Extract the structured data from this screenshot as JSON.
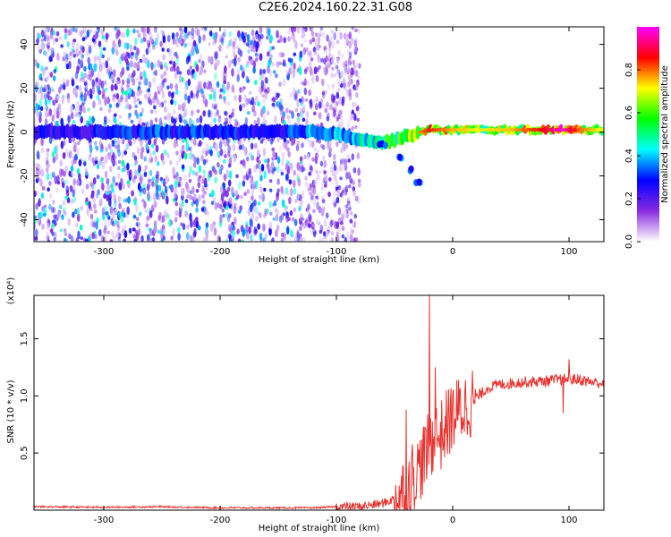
{
  "title": "C2E6.2024.160.22.31.G08",
  "chart_data": [
    {
      "type": "heatmap",
      "xlabel": "Height of straight line (km)",
      "ylabel": "Frequency (Hz)",
      "xlim": [
        -360,
        130
      ],
      "ylim": [
        -50,
        48
      ],
      "x_ticks": [
        -300,
        -200,
        -100,
        0,
        100
      ],
      "y_ticks": [
        -40,
        -20,
        0,
        20,
        40
      ],
      "colorbar": {
        "label": "Normalized spectral amplitude",
        "range": [
          0,
          1
        ],
        "ticks": [
          "0.0",
          "0.2",
          "0.4",
          "0.6",
          "0.8"
        ],
        "colors": [
          "#ffffff",
          "#8a2be2",
          "#0000ff",
          "#00ffff",
          "#00ff00",
          "#ffff00",
          "#ff0000",
          "#ff00ff"
        ]
      },
      "noise_region_x": [
        -360,
        -80
      ],
      "band": [
        {
          "x": -360,
          "y": 0,
          "amp": 0.25
        },
        {
          "x": -300,
          "y": 0,
          "amp": 0.28
        },
        {
          "x": -250,
          "y": 0,
          "amp": 0.32
        },
        {
          "x": -200,
          "y": 0,
          "amp": 0.3
        },
        {
          "x": -150,
          "y": 0,
          "amp": 0.3
        },
        {
          "x": -120,
          "y": 0,
          "amp": 0.38
        },
        {
          "x": -100,
          "y": -1,
          "amp": 0.42
        },
        {
          "x": -80,
          "y": -3,
          "amp": 0.46
        },
        {
          "x": -60,
          "y": -5,
          "amp": 0.5
        },
        {
          "x": -40,
          "y": -2,
          "amp": 0.58
        },
        {
          "x": -20,
          "y": 1,
          "amp": 0.75
        },
        {
          "x": 0,
          "y": 1,
          "amp": 0.66
        },
        {
          "x": 20,
          "y": 1,
          "amp": 0.62
        },
        {
          "x": 50,
          "y": 1,
          "amp": 0.65
        },
        {
          "x": 80,
          "y": 1,
          "amp": 0.78
        },
        {
          "x": 95,
          "y": 1,
          "amp": 0.88
        },
        {
          "x": 110,
          "y": 1,
          "amp": 0.7
        },
        {
          "x": 130,
          "y": 1,
          "amp": 0.6
        }
      ],
      "descending_branch": [
        {
          "x": -60,
          "y": -6
        },
        {
          "x": -45,
          "y": -12
        },
        {
          "x": -35,
          "y": -18
        },
        {
          "x": -30,
          "y": -22
        }
      ]
    },
    {
      "type": "line",
      "xlabel": "Height of straight line (km)",
      "ylabel": "SNR (10 * v/v)",
      "y_multiplier": "(x10⁴)",
      "xlim": [
        -360,
        130
      ],
      "ylim": [
        0,
        1.88
      ],
      "x_ticks": [
        -300,
        -200,
        -100,
        0,
        100
      ],
      "y_ticks": [
        "0.5",
        "1.0",
        "1.5"
      ],
      "series": [
        {
          "color": "#e8312d",
          "x": [
            -360,
            -300,
            -250,
            -200,
            -150,
            -120,
            -100,
            -80,
            -60,
            -50,
            -40,
            -35,
            -30,
            -25,
            -20,
            -15,
            -10,
            -5,
            0,
            10,
            20,
            30,
            40,
            60,
            80,
            100,
            110,
            120,
            130
          ],
          "y": [
            0.03,
            0.025,
            0.03,
            0.02,
            0.02,
            0.02,
            0.03,
            0.03,
            0.06,
            0.1,
            0.18,
            0.3,
            0.35,
            0.45,
            0.55,
            0.65,
            0.65,
            0.75,
            0.82,
            0.9,
            0.98,
            1.07,
            1.1,
            1.12,
            1.13,
            1.15,
            1.14,
            1.12,
            1.11
          ]
        }
      ],
      "spikes": [
        {
          "x": -20,
          "y": 1.88
        },
        {
          "x": -15,
          "y": 1.25
        },
        {
          "x": -40,
          "y": 0.88
        },
        {
          "x": 100,
          "y": 1.32
        },
        {
          "x": 95,
          "y": 0.85
        }
      ]
    }
  ]
}
